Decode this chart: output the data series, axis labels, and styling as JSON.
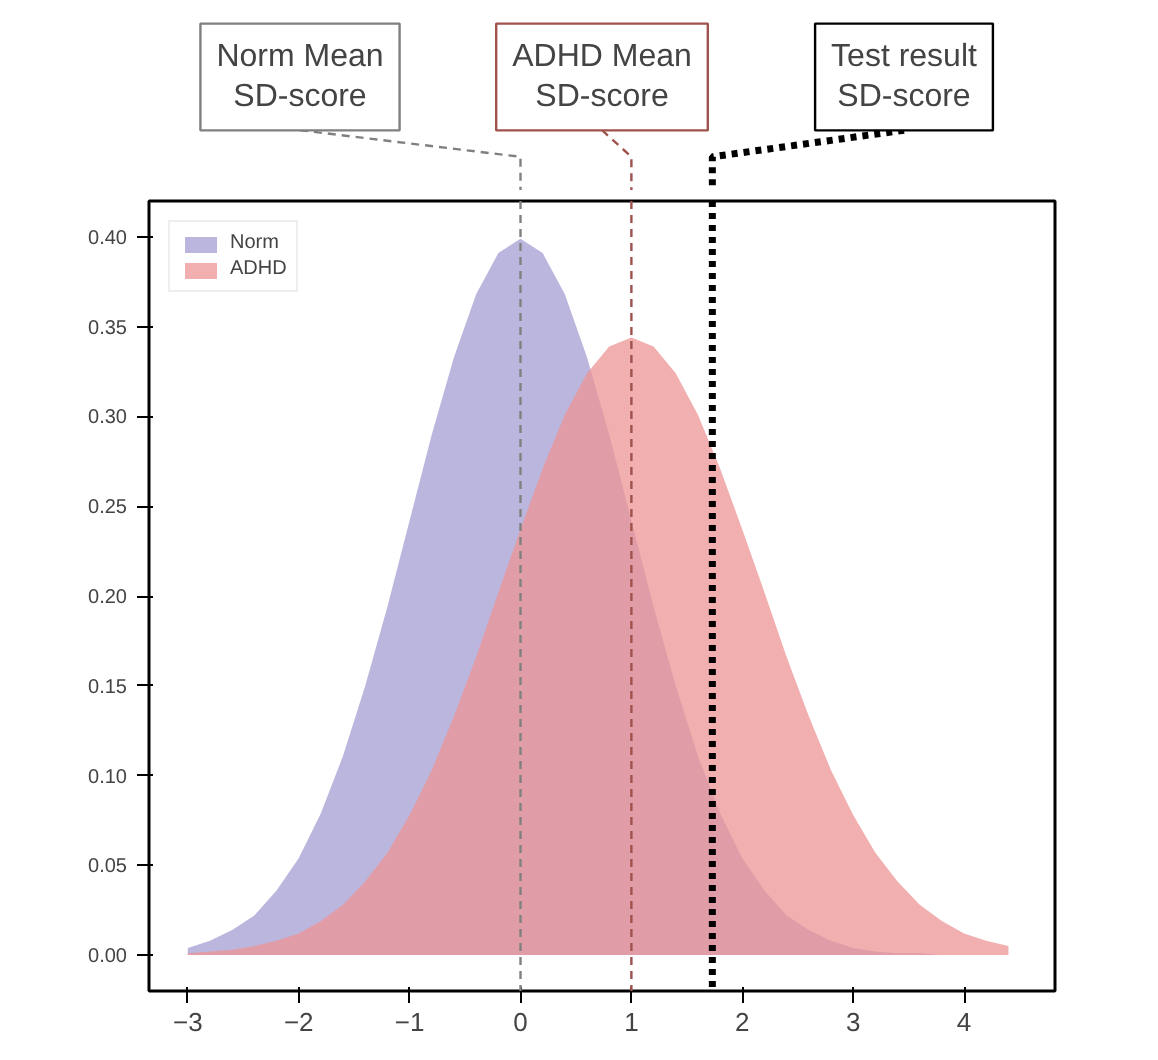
{
  "chart_data": {
    "type": "area",
    "x": [
      -3,
      -2.8,
      -2.6,
      -2.4,
      -2.2,
      -2,
      -1.8,
      -1.6,
      -1.4,
      -1.2,
      -1,
      -0.8,
      -0.6,
      -0.4,
      -0.2,
      0,
      0.2,
      0.4,
      0.6,
      0.8,
      1,
      1.2,
      1.4,
      1.6,
      1.8,
      2,
      2.2,
      2.4,
      2.6,
      2.8,
      3,
      3.2,
      3.4,
      3.6,
      3.8,
      4,
      4.2,
      4.4
    ],
    "series": [
      {
        "name": "Norm",
        "color": "#a49dd2",
        "values": [
          0.004,
          0.008,
          0.014,
          0.022,
          0.036,
          0.054,
          0.079,
          0.111,
          0.15,
          0.194,
          0.242,
          0.29,
          0.333,
          0.368,
          0.391,
          0.399,
          0.391,
          0.368,
          0.333,
          0.29,
          0.242,
          0.194,
          0.15,
          0.111,
          0.079,
          0.054,
          0.036,
          0.022,
          0.014,
          0.008,
          0.004,
          0.002,
          0.001,
          0.001,
          0,
          0,
          0,
          0
        ]
      },
      {
        "name": "ADHD",
        "color": "#ee9494",
        "values": [
          0.001,
          0.002,
          0.003,
          0.005,
          0.008,
          0.012,
          0.019,
          0.028,
          0.041,
          0.057,
          0.078,
          0.103,
          0.133,
          0.166,
          0.202,
          0.237,
          0.271,
          0.301,
          0.324,
          0.339,
          0.344,
          0.339,
          0.324,
          0.301,
          0.271,
          0.237,
          0.202,
          0.166,
          0.133,
          0.103,
          0.078,
          0.057,
          0.041,
          0.028,
          0.019,
          0.012,
          0.008,
          0.005
        ]
      }
    ],
    "xlim": [
      -3.35,
      4.82
    ],
    "ylim": [
      -0.02,
      0.42
    ],
    "xticks": [
      -3,
      -2,
      -1,
      0,
      1,
      2,
      3,
      4
    ],
    "yticks": [
      {
        "value": 0,
        "label": "0.00"
      },
      {
        "value": 0.05,
        "label": "0.05"
      },
      {
        "value": 0.1,
        "label": "0.10"
      },
      {
        "value": 0.15,
        "label": "0.15"
      },
      {
        "value": 0.2,
        "label": "0.20"
      },
      {
        "value": 0.25,
        "label": "0.25"
      },
      {
        "value": 0.3,
        "label": "0.30"
      },
      {
        "value": 0.35,
        "label": "0.35"
      },
      {
        "value": 0.4,
        "label": "0.40"
      }
    ],
    "ref_lines": [
      {
        "axis": "x",
        "value": 0,
        "label": "Norm Mean\nSD-score",
        "color": "#808080",
        "line_style": "dashed"
      },
      {
        "axis": "x",
        "value": 1,
        "label": "ADHD Mean\nSD-score",
        "color": "#a0524d",
        "line_style": "dashed"
      },
      {
        "axis": "x",
        "value": 1.73,
        "label": "Test result\nSD-score",
        "color": "#000000",
        "line_style": "dotted"
      }
    ],
    "legend": "top left",
    "grid": false
  }
}
